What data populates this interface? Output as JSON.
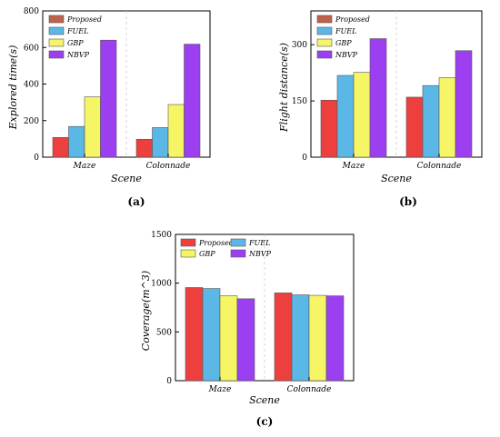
{
  "palette": {
    "Proposed": "#ee3f3f",
    "FUEL": "#5bb8e6",
    "GBP": "#f5f566",
    "NBVP": "#9b3ff0",
    "legend_Proposed": "#c0614a"
  },
  "chart_data": [
    {
      "type": "bar",
      "panel": "(a)",
      "xlabel": "Scene",
      "ylabel": "Explored time(s)",
      "categories": [
        "Maze",
        "Colonnade"
      ],
      "ylim": [
        0,
        800
      ],
      "yticks": [
        "0",
        "200",
        "400",
        "600",
        "800"
      ],
      "series": [
        {
          "name": "Proposed",
          "values": [
            108,
            98
          ]
        },
        {
          "name": "FUEL",
          "values": [
            168,
            162
          ]
        },
        {
          "name": "GBP",
          "values": [
            330,
            288
          ]
        },
        {
          "name": "NBVP",
          "values": [
            640,
            618
          ]
        }
      ],
      "grid": false,
      "legend_position": "top-left"
    },
    {
      "type": "bar",
      "panel": "(b)",
      "xlabel": "Scene",
      "ylabel": "Flight distance(s)",
      "categories": [
        "Maze",
        "Colonnade"
      ],
      "ylim": [
        0,
        390
      ],
      "yticks": [
        "0",
        "150",
        "300"
      ],
      "series": [
        {
          "name": "Proposed",
          "values": [
            152,
            160
          ]
        },
        {
          "name": "FUEL",
          "values": [
            218,
            191
          ]
        },
        {
          "name": "GBP",
          "values": [
            226,
            212
          ]
        },
        {
          "name": "NBVP",
          "values": [
            316,
            284
          ]
        }
      ],
      "grid": false,
      "legend_position": "top-left"
    },
    {
      "type": "bar",
      "panel": "(c)",
      "xlabel": "Scene",
      "ylabel": "Coverage(m^3)",
      "categories": [
        "Maze",
        "Colonnade"
      ],
      "ylim": [
        0,
        1500
      ],
      "yticks": [
        "0",
        "500",
        "1000",
        "1500"
      ],
      "series": [
        {
          "name": "Proposed",
          "values": [
            955,
            900
          ]
        },
        {
          "name": "FUEL",
          "values": [
            945,
            880
          ]
        },
        {
          "name": "GBP",
          "values": [
            870,
            875
          ]
        },
        {
          "name": "NBVP",
          "values": [
            840,
            870
          ]
        }
      ],
      "grid": false,
      "legend_position": "top"
    }
  ]
}
